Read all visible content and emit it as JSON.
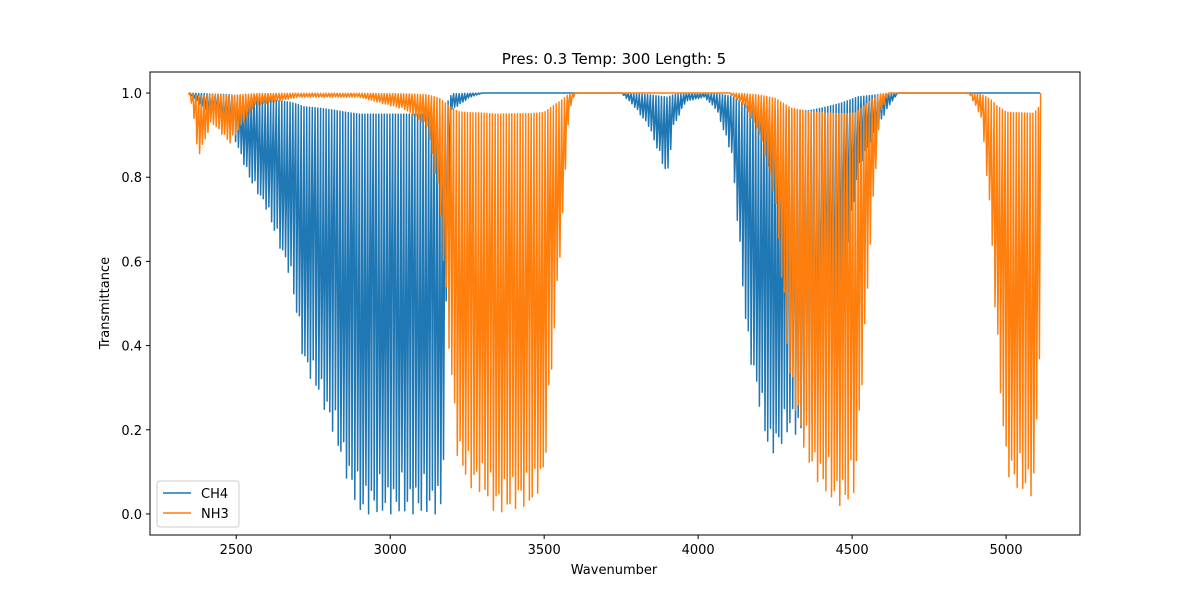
{
  "chart_data": {
    "type": "line",
    "title": "Pres: 0.3 Temp: 300 Length: 5",
    "xlabel": "Wavenumber",
    "ylabel": "Transmittance",
    "xlim": [
      2220,
      5240
    ],
    "ylim": [
      -0.05,
      1.05
    ],
    "xticks": [
      2500,
      3000,
      3500,
      4000,
      4500,
      5000
    ],
    "yticks": [
      0.0,
      0.2,
      0.4,
      0.6,
      0.8,
      1.0
    ],
    "xtick_labels": [
      "2500",
      "3000",
      "3500",
      "4000",
      "4500",
      "5000"
    ],
    "ytick_labels": [
      "0.0",
      "0.2",
      "0.4",
      "0.6",
      "0.8",
      "1.0"
    ],
    "legend_position": "lower-left",
    "grid": false,
    "series": [
      {
        "name": "CH4",
        "color": "#1f77b4",
        "line_spacing": 9,
        "envelope": [
          [
            2345,
            1.0
          ],
          [
            2400,
            0.96
          ],
          [
            2480,
            0.92
          ],
          [
            2540,
            0.8
          ],
          [
            2600,
            0.72
          ],
          [
            2680,
            0.55
          ],
          [
            2720,
            0.35
          ],
          [
            2770,
            0.28
          ],
          [
            2820,
            0.18
          ],
          [
            2860,
            0.08
          ],
          [
            2900,
            0.0
          ],
          [
            3000,
            0.0
          ],
          [
            3100,
            0.0
          ],
          [
            3170,
            0.0
          ],
          [
            3180,
            0.4
          ],
          [
            3200,
            0.96
          ],
          [
            3260,
            0.99
          ],
          [
            3300,
            1.0
          ],
          [
            3750,
            1.0
          ],
          [
            3790,
            0.97
          ],
          [
            3840,
            0.92
          ],
          [
            3880,
            0.84
          ],
          [
            3900,
            0.8
          ],
          [
            3920,
            0.92
          ],
          [
            3960,
            0.98
          ],
          [
            4020,
            0.99
          ],
          [
            4060,
            0.96
          ],
          [
            4110,
            0.85
          ],
          [
            4160,
            0.4
          ],
          [
            4200,
            0.25
          ],
          [
            4230,
            0.14
          ],
          [
            4260,
            0.15
          ],
          [
            4300,
            0.2
          ],
          [
            4360,
            0.16
          ],
          [
            4420,
            0.35
          ],
          [
            4460,
            0.5
          ],
          [
            4520,
            0.82
          ],
          [
            4570,
            0.9
          ],
          [
            4620,
            0.97
          ],
          [
            4650,
            1.0
          ],
          [
            5110,
            1.0
          ]
        ]
      },
      {
        "name": "NH3",
        "color": "#ff7f0e",
        "line_spacing": 9,
        "envelope": [
          [
            2345,
            1.0
          ],
          [
            2360,
            0.96
          ],
          [
            2375,
            0.85
          ],
          [
            2385,
            0.86
          ],
          [
            2420,
            0.93
          ],
          [
            2480,
            0.88
          ],
          [
            2560,
            0.97
          ],
          [
            2700,
            0.99
          ],
          [
            2900,
            0.99
          ],
          [
            3050,
            0.96
          ],
          [
            3120,
            0.92
          ],
          [
            3160,
            0.75
          ],
          [
            3190,
            0.4
          ],
          [
            3220,
            0.12
          ],
          [
            3260,
            0.06
          ],
          [
            3300,
            0.05
          ],
          [
            3340,
            0.0
          ],
          [
            3400,
            0.01
          ],
          [
            3460,
            0.02
          ],
          [
            3500,
            0.08
          ],
          [
            3530,
            0.4
          ],
          [
            3560,
            0.7
          ],
          [
            3580,
            0.95
          ],
          [
            3600,
            1.0
          ],
          [
            4100,
            1.0
          ],
          [
            4150,
            0.97
          ],
          [
            4200,
            0.9
          ],
          [
            4250,
            0.75
          ],
          [
            4300,
            0.3
          ],
          [
            4350,
            0.13
          ],
          [
            4400,
            0.06
          ],
          [
            4450,
            0.02
          ],
          [
            4480,
            0.02
          ],
          [
            4510,
            0.05
          ],
          [
            4540,
            0.4
          ],
          [
            4560,
            0.65
          ],
          [
            4590,
            0.95
          ],
          [
            4620,
            1.0
          ],
          [
            4880,
            1.0
          ],
          [
            4920,
            0.94
          ],
          [
            4950,
            0.7
          ],
          [
            4970,
            0.4
          ],
          [
            5000,
            0.1
          ],
          [
            5030,
            0.06
          ],
          [
            5060,
            0.05
          ],
          [
            5090,
            0.04
          ],
          [
            5110,
            0.4
          ],
          [
            5112,
            1.0
          ]
        ]
      }
    ]
  }
}
